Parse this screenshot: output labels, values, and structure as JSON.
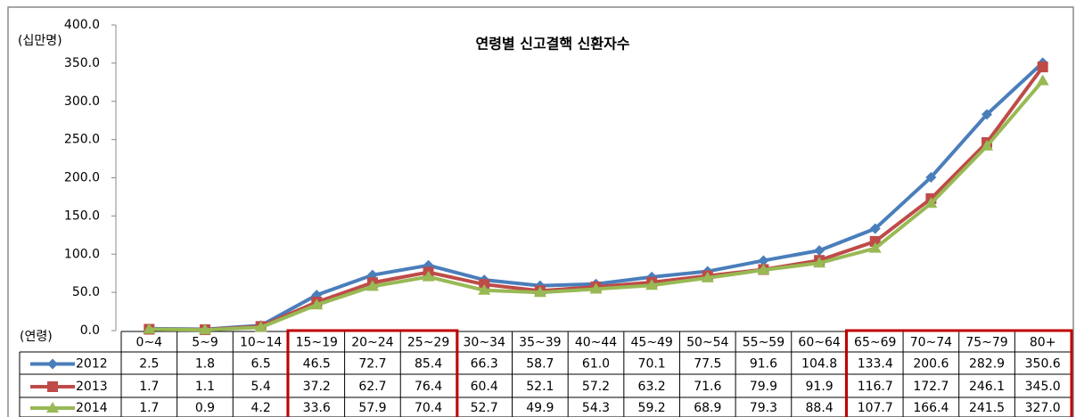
{
  "chart_data": {
    "type": "line",
    "title": "연령별 신고결핵 신환자수",
    "y_unit": "(십만명)",
    "x_label": "(연령)",
    "categories": [
      "0~4",
      "5~9",
      "10~14",
      "15~19",
      "20~24",
      "25~29",
      "30~34",
      "35~39",
      "40~44",
      "45~49",
      "50~54",
      "55~59",
      "60~64",
      "65~69",
      "70~74",
      "75~79",
      "80+"
    ],
    "series": [
      {
        "name": "2012",
        "color": "#4a7ebb",
        "marker": "diamond",
        "values": [
          2.5,
          1.8,
          6.5,
          46.5,
          72.7,
          85.4,
          66.3,
          58.7,
          61.0,
          70.1,
          77.5,
          91.6,
          104.8,
          133.4,
          200.6,
          282.9,
          350.6
        ],
        "value_labels": [
          "2.5",
          "1.8",
          "6.5",
          "46.5",
          "72.7",
          "85.4",
          "66.3",
          "58.7",
          "61.0",
          "70.1",
          "77.5",
          "91.6",
          "104.8",
          "133.4",
          "200.6",
          "282.9",
          "350.6"
        ]
      },
      {
        "name": "2013",
        "color": "#be4b48",
        "marker": "square",
        "values": [
          1.7,
          1.1,
          5.4,
          37.2,
          62.7,
          76.4,
          60.4,
          52.1,
          57.2,
          63.2,
          71.6,
          79.9,
          91.9,
          116.7,
          172.7,
          246.1,
          345.0
        ],
        "value_labels": [
          "1.7",
          "1.1",
          "5.4",
          "37.2",
          "62.7",
          "76.4",
          "60.4",
          "52.1",
          "57.2",
          "63.2",
          "71.6",
          "79.9",
          "91.9",
          "116.7",
          "172.7",
          "246.1",
          "345.0"
        ]
      },
      {
        "name": "2014",
        "color": "#98b954",
        "marker": "triangle",
        "values": [
          1.7,
          0.9,
          4.2,
          33.6,
          57.9,
          70.4,
          52.7,
          49.9,
          54.3,
          59.2,
          68.9,
          79.3,
          88.4,
          107.7,
          166.4,
          241.5,
          327.0
        ],
        "value_labels": [
          "1.7",
          "0.9",
          "4.2",
          "33.6",
          "57.9",
          "70.4",
          "52.7",
          "49.9",
          "54.3",
          "59.2",
          "68.9",
          "79.3",
          "88.4",
          "107.7",
          "166.4",
          "241.5",
          "327.0"
        ]
      }
    ],
    "ylim": [
      0,
      400
    ],
    "yticks": [
      {
        "value": 0,
        "label": "0.0"
      },
      {
        "value": 50,
        "label": "50.0"
      },
      {
        "value": 100,
        "label": "100.0"
      },
      {
        "value": 150,
        "label": "150.0"
      },
      {
        "value": 200,
        "label": "200.0"
      },
      {
        "value": 250,
        "label": "250.0"
      },
      {
        "value": 300,
        "label": "300.0"
      },
      {
        "value": 350,
        "label": "350.0"
      },
      {
        "value": 400,
        "label": "400.0"
      }
    ],
    "grid": false
  }
}
